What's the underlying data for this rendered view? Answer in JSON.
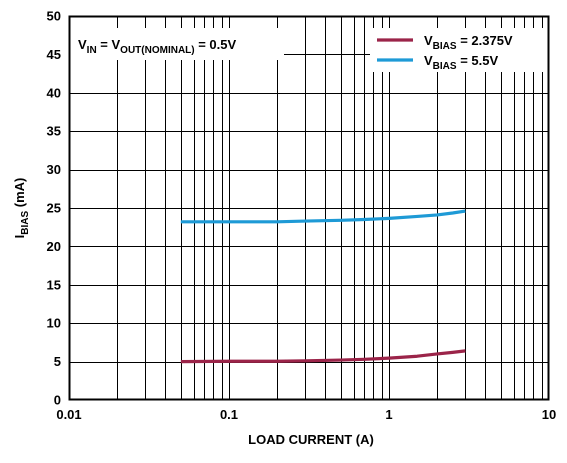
{
  "chart_data": {
    "type": "line",
    "x_scale": "log",
    "xlim": [
      0.01,
      10
    ],
    "ylim": [
      0,
      50
    ],
    "x_ticks": [
      {
        "value": 0.01,
        "label": "0.01"
      },
      {
        "value": 0.1,
        "label": "0.1"
      },
      {
        "value": 1,
        "label": "1"
      },
      {
        "value": 10,
        "label": "10"
      }
    ],
    "y_ticks": [
      {
        "value": 0,
        "label": "0"
      },
      {
        "value": 5,
        "label": "5"
      },
      {
        "value": 10,
        "label": "10"
      },
      {
        "value": 15,
        "label": "15"
      },
      {
        "value": 20,
        "label": "20"
      },
      {
        "value": 25,
        "label": "25"
      },
      {
        "value": 30,
        "label": "30"
      },
      {
        "value": 35,
        "label": "35"
      },
      {
        "value": 40,
        "label": "40"
      },
      {
        "value": 45,
        "label": "45"
      },
      {
        "value": 50,
        "label": "50"
      }
    ],
    "xlabel": "LOAD CURRENT (A)",
    "ylabel": {
      "main": "I",
      "sub": "BIAS",
      "rest": " (mA)"
    },
    "grid": true,
    "annotation": {
      "parts": [
        {
          "text": "V",
          "sub": false
        },
        {
          "text": "IN",
          "sub": true
        },
        {
          "text": " = V",
          "sub": false
        },
        {
          "text": "OUT(NOMINAL)",
          "sub": true
        },
        {
          "text": " = 0.5V",
          "sub": false
        }
      ]
    },
    "legend": {
      "position": "top-right",
      "entries": [
        {
          "main": "V",
          "sub": "BIAS",
          "rest": " = 2.375V",
          "color": "#9b2449"
        },
        {
          "main": "V",
          "sub": "BIAS",
          "rest": " = 5.5V",
          "color": "#1e9ad6"
        }
      ]
    },
    "series": [
      {
        "color": "#9b2449",
        "x": [
          0.05,
          0.1,
          0.2,
          0.3,
          0.5,
          0.7,
          1,
          1.5,
          2,
          2.5,
          3
        ],
        "y": [
          5.0,
          5.05,
          5.05,
          5.1,
          5.2,
          5.3,
          5.45,
          5.7,
          6.0,
          6.2,
          6.4
        ]
      },
      {
        "color": "#1e9ad6",
        "x": [
          0.05,
          0.1,
          0.2,
          0.3,
          0.5,
          0.7,
          1,
          1.5,
          2,
          2.5,
          3
        ],
        "y": [
          23.2,
          23.2,
          23.2,
          23.3,
          23.4,
          23.5,
          23.65,
          23.9,
          24.1,
          24.35,
          24.6
        ]
      }
    ]
  }
}
